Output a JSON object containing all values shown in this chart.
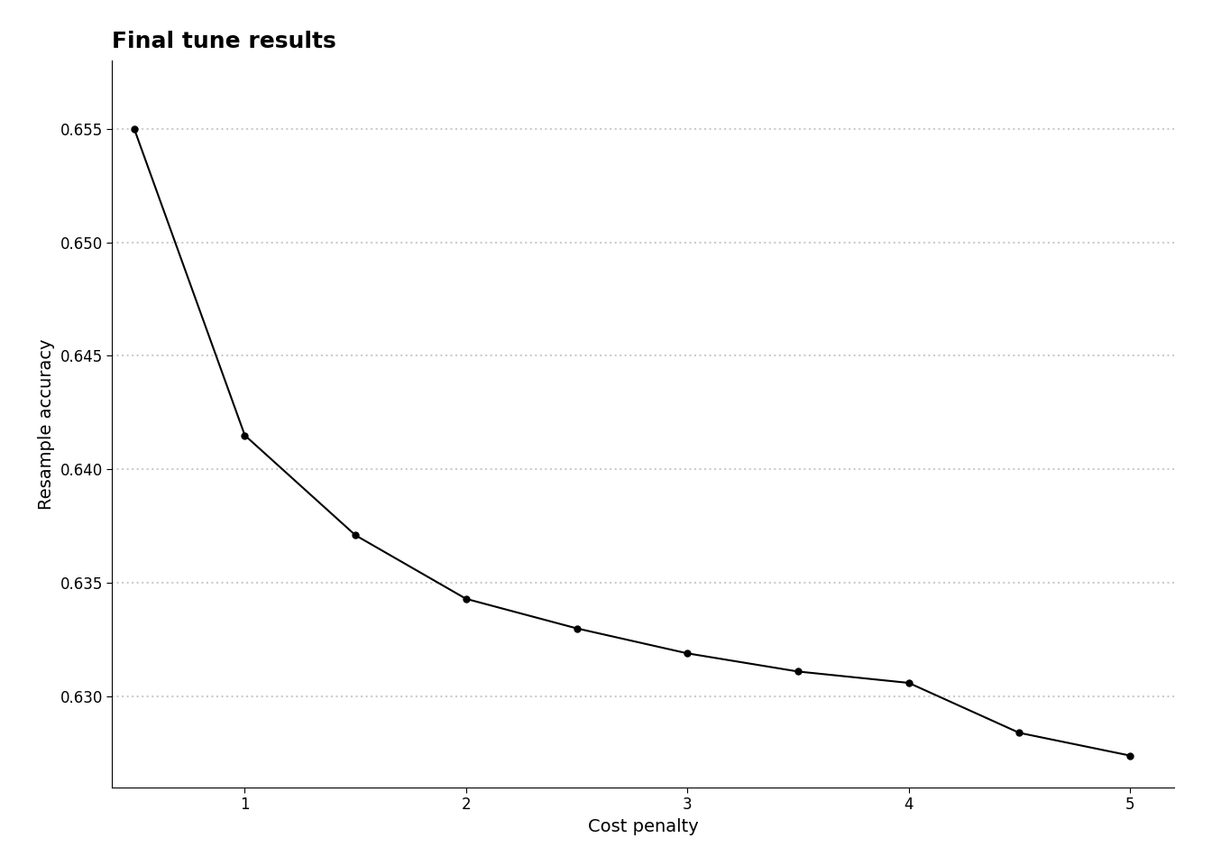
{
  "title": "Final tune results",
  "xlabel": "Cost penalty",
  "ylabel": "Resample accuracy",
  "x": [
    0.5,
    1.0,
    1.5,
    2.0,
    2.5,
    3.0,
    3.5,
    4.0,
    4.5,
    5.0
  ],
  "y": [
    0.655,
    0.6415,
    0.6371,
    0.6343,
    0.633,
    0.6319,
    0.6311,
    0.6306,
    0.6284,
    0.6274
  ],
  "line_color": "#000000",
  "marker": "o",
  "marker_size": 5,
  "line_width": 1.5,
  "xlim": [
    0.4,
    5.2
  ],
  "ylim": [
    0.626,
    0.658
  ],
  "yticks": [
    0.63,
    0.635,
    0.64,
    0.645,
    0.65,
    0.655
  ],
  "xticks": [
    1,
    2,
    3,
    4,
    5
  ],
  "grid_color": "#cccccc",
  "background_color": "#ffffff",
  "title_fontsize": 18,
  "label_fontsize": 14,
  "tick_fontsize": 12
}
